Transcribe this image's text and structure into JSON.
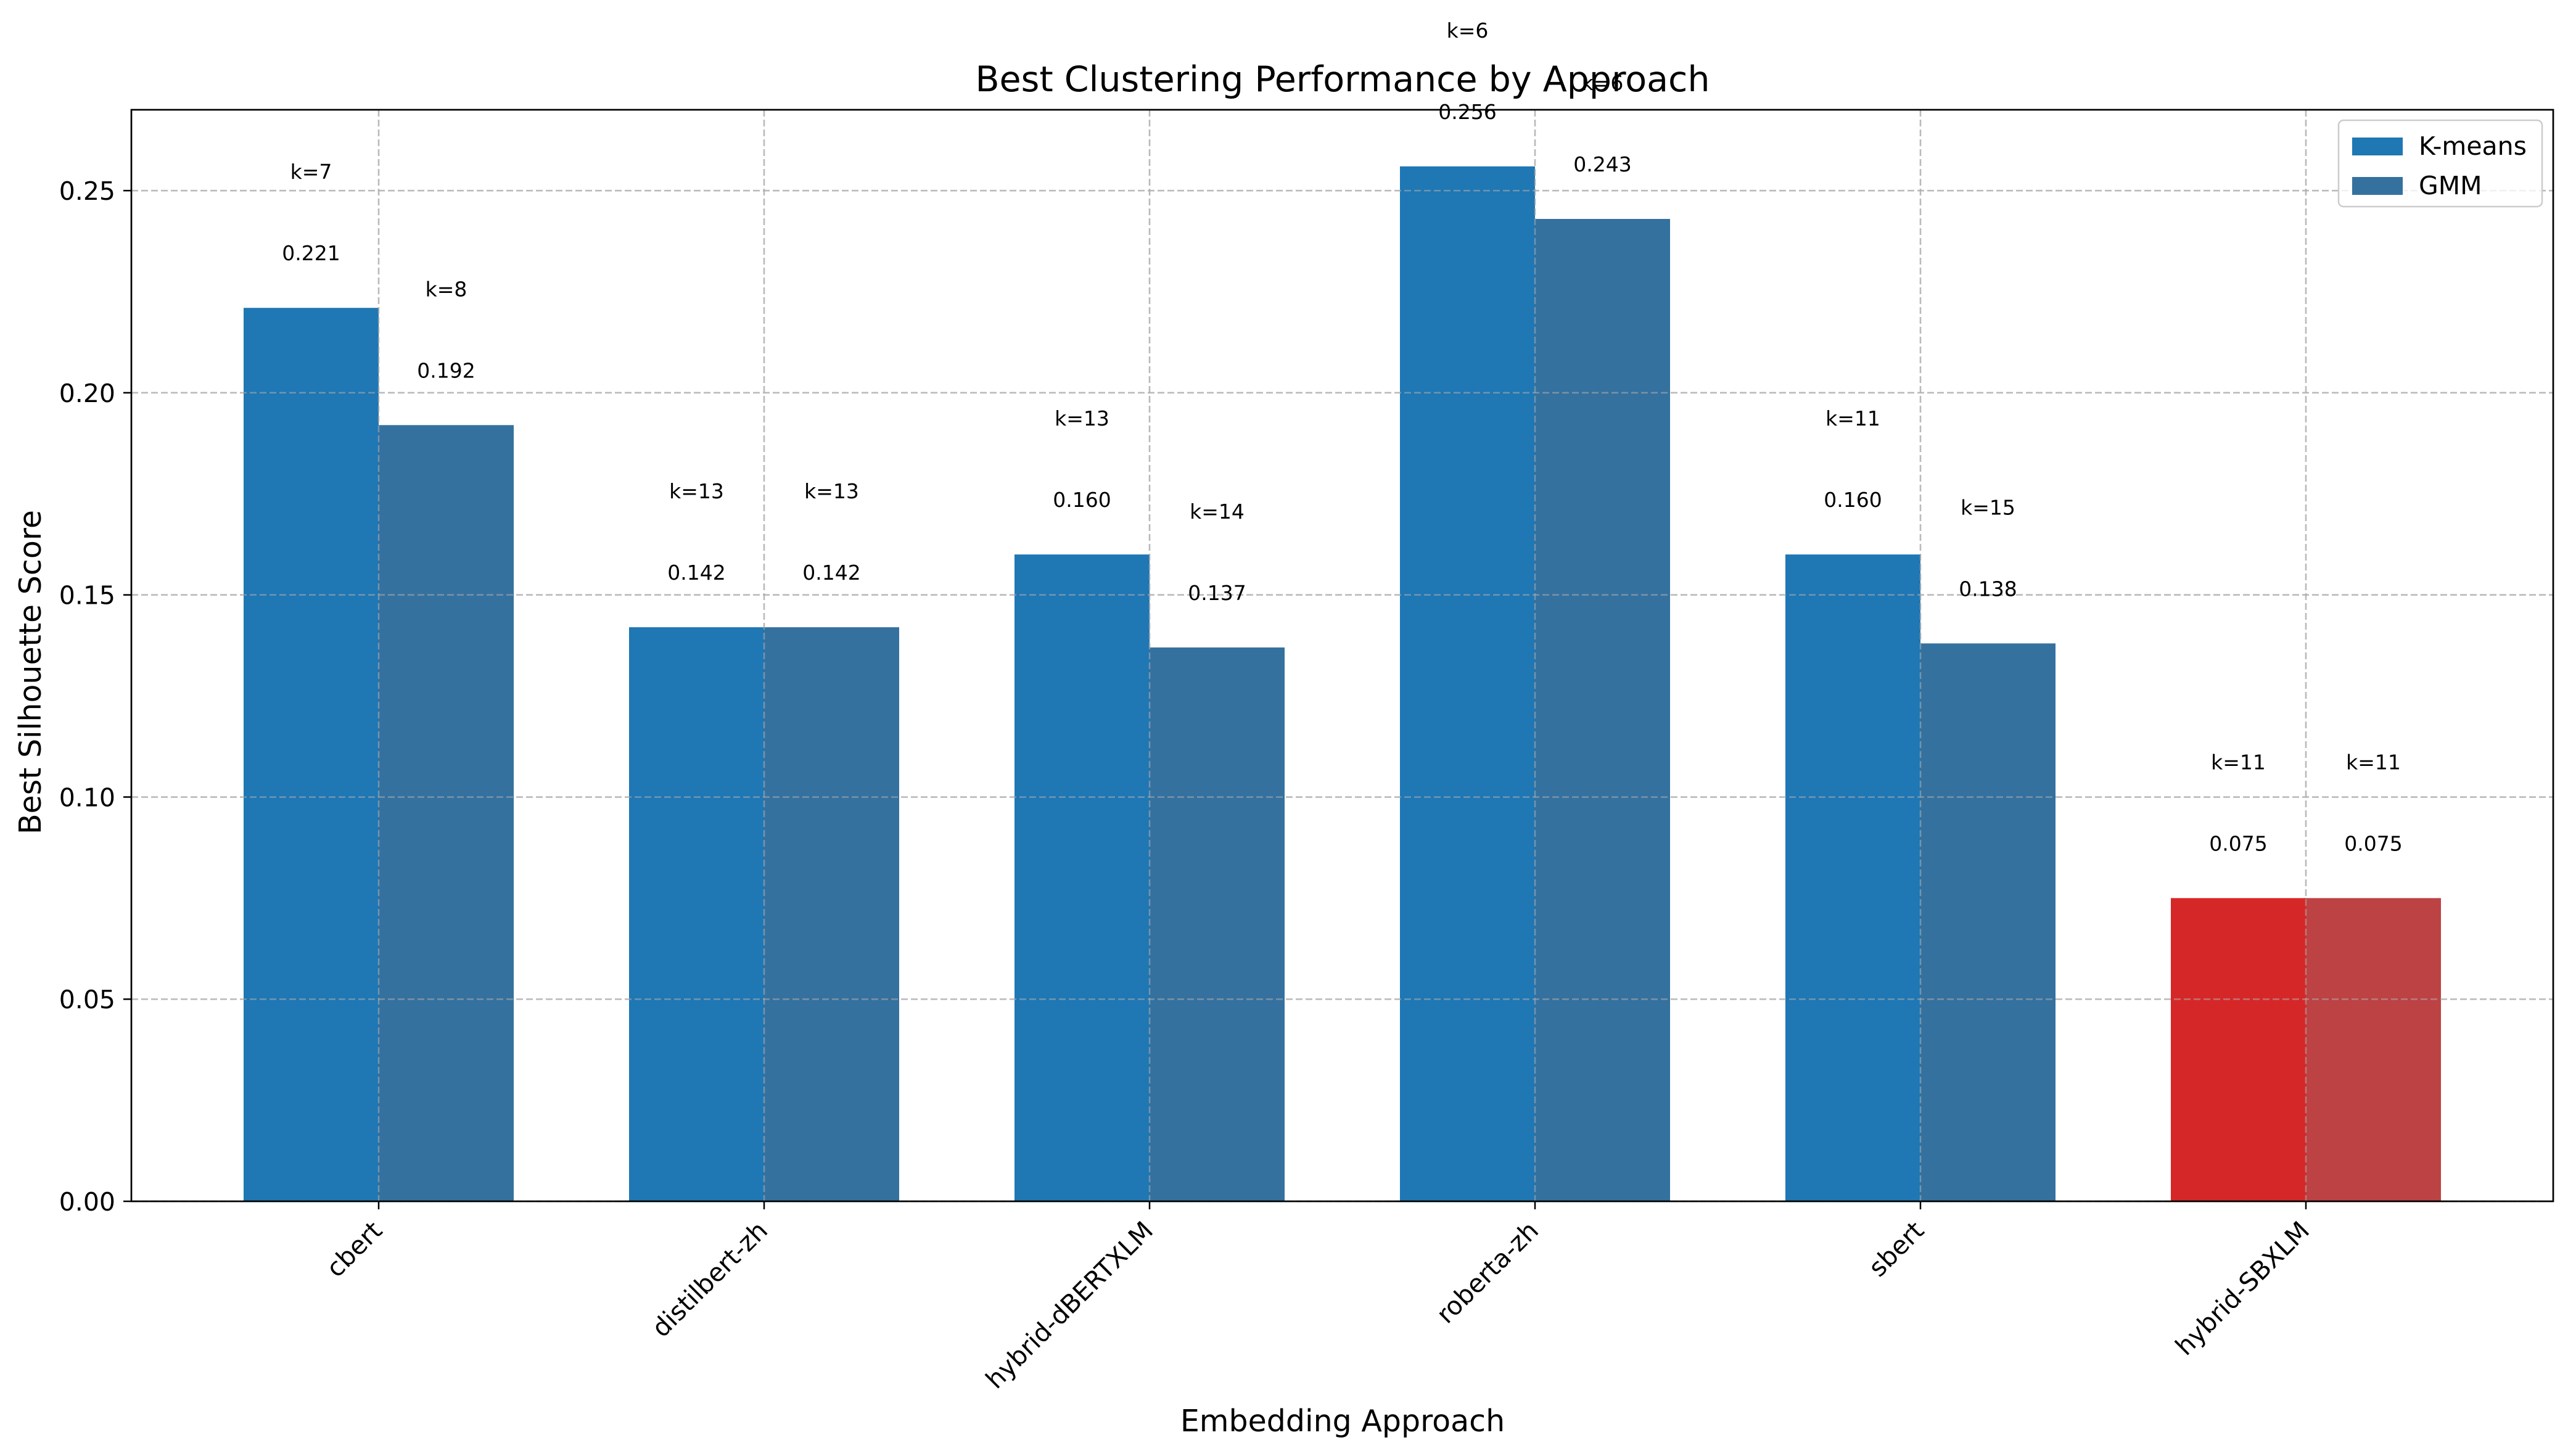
{
  "chart_data": {
    "type": "bar",
    "title": "Best Clustering Performance by Approach",
    "xlabel": "Embedding Approach",
    "ylabel": "Best Silhouette Score",
    "categories": [
      "cbert",
      "distilbert-zh",
      "hybrid-dBERTXLM",
      "roberta-zh",
      "sbert",
      "hybrid-SBXLM"
    ],
    "ylim": [
      0,
      0.27
    ],
    "yticks": [
      "0.00",
      "0.05",
      "0.10",
      "0.15",
      "0.20",
      "0.25"
    ],
    "grid": true,
    "legend_position": "upper right",
    "series": [
      {
        "name": "K-means",
        "values": [
          0.221,
          0.142,
          0.16,
          0.256,
          0.16,
          0.075
        ],
        "value_labels": [
          "0.221",
          "0.142",
          "0.160",
          "0.256",
          "0.160",
          "0.075"
        ],
        "k_labels": [
          "k=7",
          "k=13",
          "k=13",
          "k=6",
          "k=11",
          "k=11"
        ],
        "color": "#1f77b4",
        "highlight_color": "#d62728"
      },
      {
        "name": "GMM",
        "values": [
          0.192,
          0.142,
          0.137,
          0.243,
          0.138,
          0.075
        ],
        "value_labels": [
          "0.192",
          "0.142",
          "0.137",
          "0.243",
          "0.138",
          "0.075"
        ],
        "k_labels": [
          "k=8",
          "k=13",
          "k=14",
          "k=6",
          "k=15",
          "k=11"
        ],
        "color": "#35719e",
        "highlight_color": "#bc4244"
      }
    ],
    "highlight_category": "hybrid-SBXLM"
  }
}
